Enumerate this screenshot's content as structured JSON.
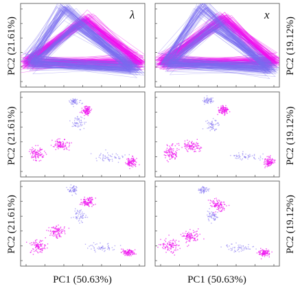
{
  "figure": {
    "ylabel_left": "PC2 (21.61%)",
    "ylabel_right": "PC2 (19.12%)",
    "xlabel_left": "PC1 (50.63%)",
    "xlabel_right": "PC1 (50.63%)",
    "corner_labels": [
      "λ",
      "x"
    ]
  },
  "colors": {
    "blue": "#7b6cf0",
    "magenta": "#ee10ee",
    "frame": "#444444"
  },
  "chart_data": [
    {
      "type": "line",
      "panel": "row1-left",
      "corner_label": "λ",
      "xlabel": "",
      "ylabel": "PC2 (21.61%)",
      "grid": false,
      "legend": "none",
      "xlim": [
        0,
        1
      ],
      "ylim": [
        0,
        1
      ],
      "triangles": [
        {
          "color": "magenta",
          "vertices": [
            [
              0.02,
              0.28
            ],
            [
              0.53,
              0.83
            ],
            [
              0.98,
              0.28
            ]
          ]
        },
        {
          "color": "blue",
          "vertices": [
            [
              0.05,
              0.3
            ],
            [
              0.35,
              0.98
            ],
            [
              0.9,
              0.22
            ]
          ]
        },
        {
          "color": "blue",
          "vertices": [
            [
              0.08,
              0.26
            ],
            [
              0.45,
              0.75
            ],
            [
              0.95,
              0.18
            ]
          ]
        }
      ]
    },
    {
      "type": "line",
      "panel": "row1-right",
      "corner_label": "x",
      "xlabel": "",
      "ylabel": "PC2 (19.12%)",
      "grid": false,
      "legend": "none",
      "xlim": [
        0,
        1
      ],
      "ylim": [
        0,
        1
      ],
      "triangles": [
        {
          "color": "magenta",
          "vertices": [
            [
              0.03,
              0.28
            ],
            [
              0.55,
              0.84
            ],
            [
              0.98,
              0.29
            ]
          ]
        },
        {
          "color": "blue",
          "vertices": [
            [
              0.06,
              0.3
            ],
            [
              0.37,
              0.98
            ],
            [
              0.92,
              0.22
            ]
          ]
        },
        {
          "color": "blue",
          "vertices": [
            [
              0.09,
              0.25
            ],
            [
              0.47,
              0.74
            ],
            [
              0.96,
              0.19
            ]
          ]
        }
      ]
    },
    {
      "type": "scatter",
      "panel": "row2-left",
      "xlabel": "",
      "ylabel": "PC2 (21.61%)",
      "grid": false,
      "legend": "none",
      "xlim": [
        0,
        1
      ],
      "ylim": [
        0,
        1
      ],
      "clusters": [
        {
          "color": "magenta",
          "center": [
            0.11,
            0.27
          ],
          "spread": [
            0.05,
            0.08
          ]
        },
        {
          "color": "magenta",
          "center": [
            0.31,
            0.38
          ],
          "spread": [
            0.07,
            0.06
          ]
        },
        {
          "color": "magenta",
          "center": [
            0.53,
            0.8
          ],
          "spread": [
            0.04,
            0.05
          ]
        },
        {
          "color": "magenta",
          "center": [
            0.91,
            0.16
          ],
          "spread": [
            0.04,
            0.05
          ]
        },
        {
          "color": "blue",
          "center": [
            0.43,
            0.92
          ],
          "spread": [
            0.04,
            0.04
          ]
        },
        {
          "color": "blue",
          "center": [
            0.46,
            0.65
          ],
          "spread": [
            0.05,
            0.07
          ]
        },
        {
          "color": "blue",
          "center": [
            0.72,
            0.22
          ],
          "spread": [
            0.12,
            0.05
          ]
        }
      ]
    },
    {
      "type": "scatter",
      "panel": "row2-right",
      "xlabel": "",
      "ylabel": "PC2 (19.12%)",
      "grid": false,
      "legend": "none",
      "xlim": [
        0,
        1
      ],
      "ylim": [
        0,
        1
      ],
      "clusters": [
        {
          "color": "magenta",
          "center": [
            0.11,
            0.27
          ],
          "spread": [
            0.05,
            0.08
          ]
        },
        {
          "color": "magenta",
          "center": [
            0.28,
            0.36
          ],
          "spread": [
            0.07,
            0.06
          ]
        },
        {
          "color": "magenta",
          "center": [
            0.55,
            0.81
          ],
          "spread": [
            0.04,
            0.05
          ]
        },
        {
          "color": "magenta",
          "center": [
            0.93,
            0.16
          ],
          "spread": [
            0.04,
            0.05
          ]
        },
        {
          "color": "blue",
          "center": [
            0.41,
            0.93
          ],
          "spread": [
            0.04,
            0.04
          ]
        },
        {
          "color": "blue",
          "center": [
            0.45,
            0.62
          ],
          "spread": [
            0.05,
            0.07
          ]
        },
        {
          "color": "blue",
          "center": [
            0.73,
            0.22
          ],
          "spread": [
            0.12,
            0.05
          ]
        }
      ]
    },
    {
      "type": "scatter",
      "panel": "row3-left",
      "xlabel": "PC1 (50.63%)",
      "ylabel": "PC2 (21.61%)",
      "grid": false,
      "legend": "none",
      "xlim": [
        0,
        1
      ],
      "ylim": [
        0,
        1
      ],
      "clusters": [
        {
          "color": "magenta",
          "center": [
            0.12,
            0.22
          ],
          "spread": [
            0.06,
            0.08
          ]
        },
        {
          "color": "magenta",
          "center": [
            0.28,
            0.4
          ],
          "spread": [
            0.06,
            0.07
          ]
        },
        {
          "color": "magenta",
          "center": [
            0.53,
            0.78
          ],
          "spread": [
            0.05,
            0.06
          ]
        },
        {
          "color": "magenta",
          "center": [
            0.88,
            0.14
          ],
          "spread": [
            0.05,
            0.04
          ]
        },
        {
          "color": "blue",
          "center": [
            0.41,
            0.93
          ],
          "spread": [
            0.04,
            0.04
          ]
        },
        {
          "color": "blue",
          "center": [
            0.47,
            0.6
          ],
          "spread": [
            0.05,
            0.07
          ]
        },
        {
          "color": "blue",
          "center": [
            0.66,
            0.2
          ],
          "spread": [
            0.12,
            0.05
          ]
        }
      ]
    },
    {
      "type": "scatter",
      "panel": "row3-right",
      "xlabel": "PC1 (50.63%)",
      "ylabel": "PC2 (19.12%)",
      "grid": false,
      "legend": "none",
      "xlim": [
        0,
        1
      ],
      "ylim": [
        0,
        1
      ],
      "clusters": [
        {
          "color": "magenta",
          "center": [
            0.1,
            0.23
          ],
          "spread": [
            0.06,
            0.08
          ]
        },
        {
          "color": "magenta",
          "center": [
            0.27,
            0.35
          ],
          "spread": [
            0.06,
            0.07
          ]
        },
        {
          "color": "magenta",
          "center": [
            0.5,
            0.74
          ],
          "spread": [
            0.06,
            0.07
          ]
        },
        {
          "color": "magenta",
          "center": [
            0.89,
            0.14
          ],
          "spread": [
            0.05,
            0.04
          ]
        },
        {
          "color": "blue",
          "center": [
            0.38,
            0.93
          ],
          "spread": [
            0.04,
            0.04
          ]
        },
        {
          "color": "blue",
          "center": [
            0.46,
            0.6
          ],
          "spread": [
            0.05,
            0.07
          ]
        },
        {
          "color": "blue",
          "center": [
            0.67,
            0.2
          ],
          "spread": [
            0.12,
            0.05
          ]
        }
      ]
    }
  ]
}
